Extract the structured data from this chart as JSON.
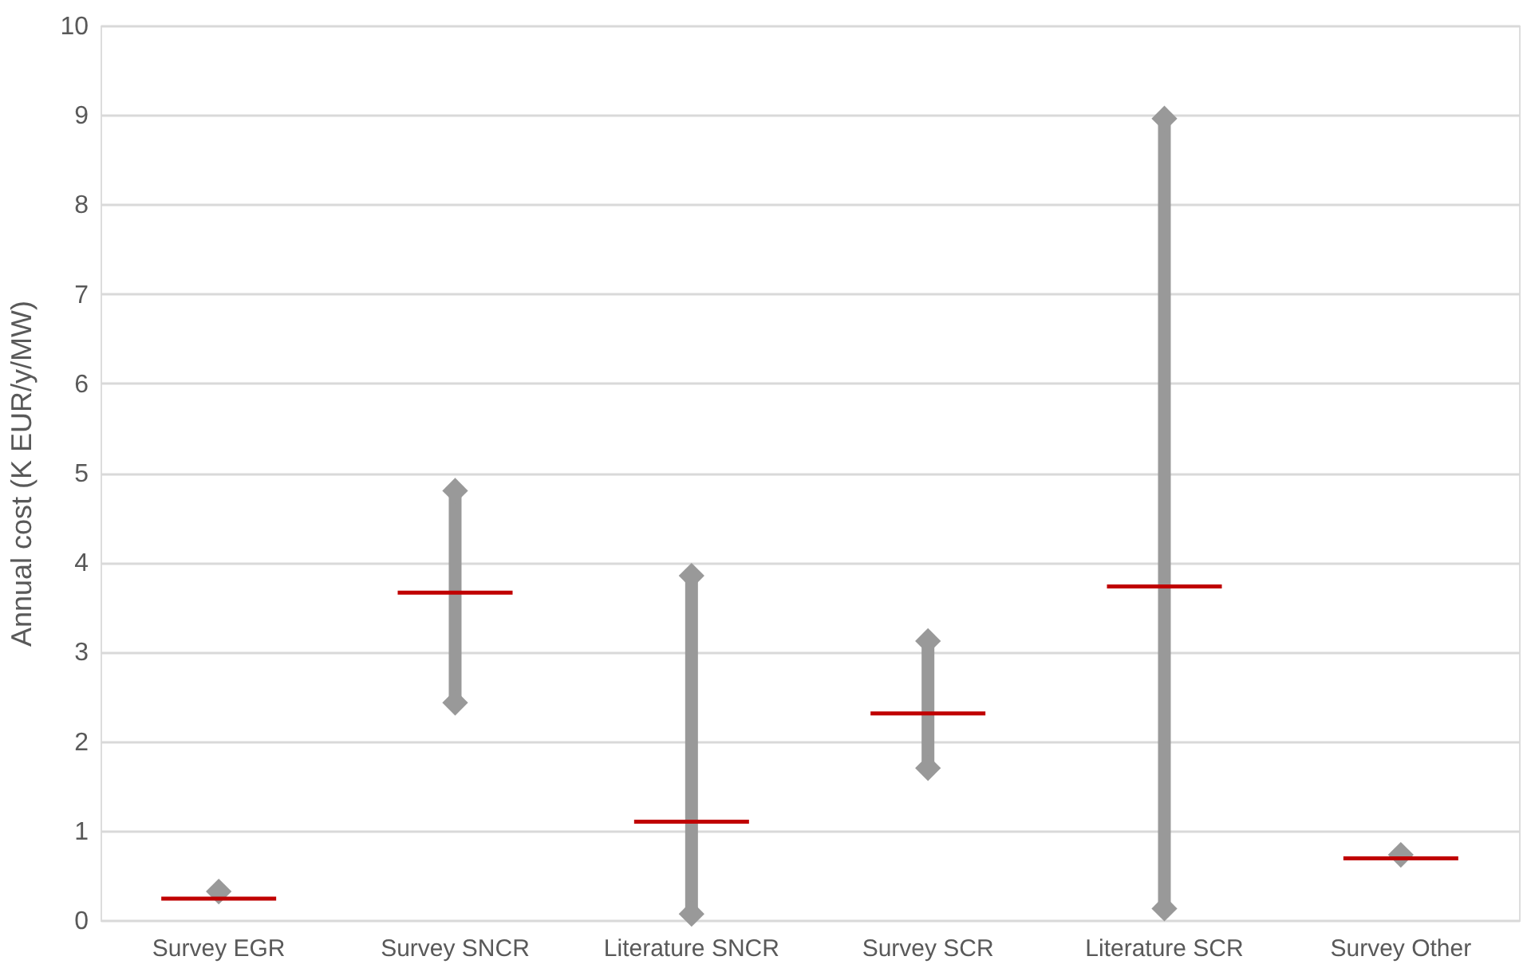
{
  "chart_data": {
    "type": "bar",
    "ylabel": "Annual cost (K EUR/y/MW)",
    "categories": [
      "Survey EGR",
      "Survey SNCR",
      "Literature SNCR",
      "Survey SCR",
      "Literature SCR",
      "Survey Other"
    ],
    "series": [
      {
        "color": "#999999",
        "base": [
          null,
          2.43,
          0.07,
          1.7,
          0.13,
          null
        ],
        "values": [
          null,
          2.37,
          3.78,
          1.42,
          8.83,
          null
        ]
      },
      {
        "type": "scatter",
        "marker": "diamond",
        "color": "#999999",
        "values": [
          0.32,
          4.8,
          3.85,
          3.12,
          8.96,
          0.73
        ]
      },
      {
        "type": "scatter",
        "marker": "diamond",
        "color": "#999999",
        "values": [
          null,
          2.43,
          0.07,
          1.7,
          0.13,
          null
        ]
      },
      {
        "color": "#c00000",
        "base": [
          0.24,
          3.66,
          1.1,
          2.31,
          3.73,
          0.69
        ],
        "values": [
          0,
          0,
          0,
          0,
          0,
          0
        ]
      }
    ],
    "ylim": [
      0,
      10
    ],
    "yticks": [
      0,
      1,
      2,
      3,
      4,
      5,
      6,
      7,
      8,
      9,
      10
    ],
    "grid": "y"
  }
}
